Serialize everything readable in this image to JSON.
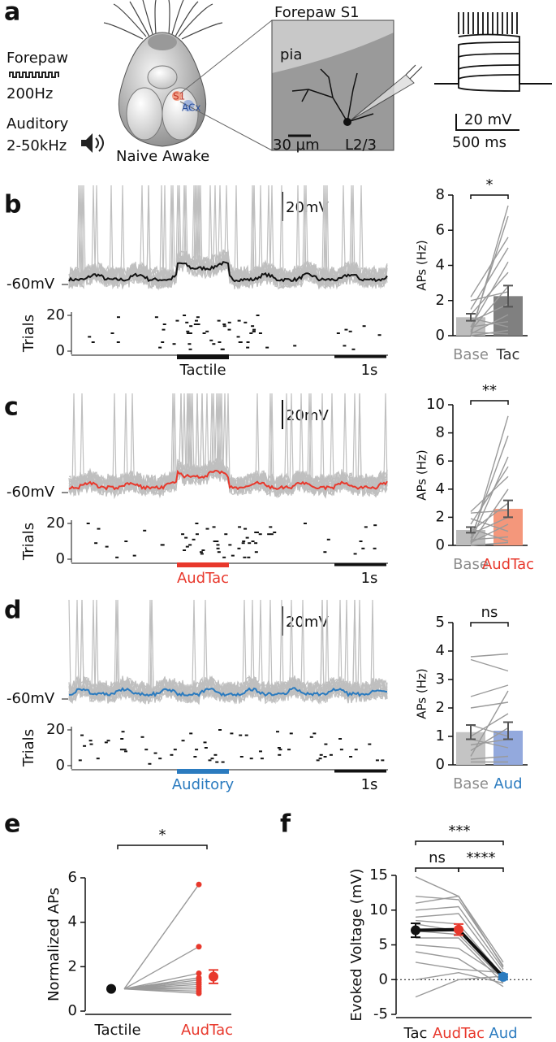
{
  "panel_labels": [
    "a",
    "b",
    "c",
    "d",
    "e",
    "f"
  ],
  "panel_a": {
    "forepaw": "Forepaw",
    "forepaw_freq": "200Hz",
    "auditory": "Auditory",
    "auditory_freq": "2-50kHz",
    "condition": "Naive Awake",
    "s1": "S1",
    "acx": "ACx",
    "image_title": "Forepaw S1",
    "pia": "pia",
    "image_scale": "30 µm",
    "layer": "L2/3",
    "voltage_scale": "20 mV",
    "time_scale": "500 ms"
  },
  "traces": [
    {
      "resting": "-60mV",
      "scale": "20mV",
      "trials_label": "Trials",
      "trials_ticks": [
        0,
        20
      ],
      "stimulus": "Tactile",
      "time_scale": "1s",
      "color": "#111111"
    },
    {
      "resting": "-60mV",
      "scale": "20mV",
      "trials_label": "Trials",
      "trials_ticks": [
        0,
        20
      ],
      "stimulus": "AudTac",
      "time_scale": "1s",
      "color": "#e8382c"
    },
    {
      "resting": "-60mV",
      "scale": "20mV",
      "trials_label": "Trials",
      "trials_ticks": [
        0,
        20
      ],
      "stimulus": "Auditory",
      "time_scale": "1s",
      "color": "#2b7bbf"
    }
  ],
  "chart_data": [
    {
      "type": "bar",
      "ylabel": "APs (Hz)",
      "categories": [
        "Base",
        "Tac"
      ],
      "category_colors": [
        "#8c8c8c",
        "#333333"
      ],
      "values": [
        1.05,
        2.25
      ],
      "errors": [
        0.2,
        0.6
      ],
      "colors": [
        "#bdbdbd",
        "#808080"
      ],
      "paired": [
        [
          0,
          7.4
        ],
        [
          0.2,
          6.8
        ],
        [
          2.2,
          5.6
        ],
        [
          1.5,
          5.0
        ],
        [
          0.5,
          4.2
        ],
        [
          1.2,
          3.6
        ],
        [
          0.3,
          2.8
        ],
        [
          2.0,
          2.5
        ],
        [
          0.8,
          1.8
        ],
        [
          0.1,
          1.2
        ],
        [
          0.5,
          0.8
        ],
        [
          0,
          0.3
        ],
        [
          1.0,
          0.5
        ],
        [
          0.2,
          0.1
        ]
      ],
      "ylim": [
        0,
        8
      ],
      "yticks": [
        0,
        2,
        4,
        6,
        8
      ],
      "significance": [
        "*"
      ]
    },
    {
      "type": "bar",
      "ylabel": "APs (Hz)",
      "categories": [
        "Base",
        "AudTac"
      ],
      "category_colors": [
        "#8c8c8c",
        "#e8382c"
      ],
      "values": [
        1.1,
        2.6
      ],
      "errors": [
        0.2,
        0.6
      ],
      "colors": [
        "#bdbdbd",
        "#f4977b"
      ],
      "paired": [
        [
          0.2,
          9.2
        ],
        [
          0.5,
          7.8
        ],
        [
          0.3,
          6.3
        ],
        [
          1.5,
          5.6
        ],
        [
          2.4,
          4.9
        ],
        [
          0.1,
          4.0
        ],
        [
          1.0,
          3.0
        ],
        [
          2.3,
          2.5
        ],
        [
          0.8,
          2.0
        ],
        [
          0.2,
          1.5
        ],
        [
          1.9,
          1.0
        ],
        [
          0.4,
          0.6
        ],
        [
          0,
          0.2
        ],
        [
          1.2,
          0.3
        ]
      ],
      "ylim": [
        0,
        10
      ],
      "yticks": [
        0,
        2,
        4,
        6,
        8,
        10
      ],
      "significance": [
        "**"
      ]
    },
    {
      "type": "bar",
      "ylabel": "APs (Hz)",
      "categories": [
        "Base",
        "Aud"
      ],
      "category_colors": [
        "#8c8c8c",
        "#2b7bbf"
      ],
      "values": [
        1.15,
        1.2
      ],
      "errors": [
        0.25,
        0.3
      ],
      "colors": [
        "#c4c4c4",
        "#93a9dd"
      ],
      "paired": [
        [
          3.8,
          3.9
        ],
        [
          3.7,
          3.3
        ],
        [
          2.4,
          2.8
        ],
        [
          0.3,
          2.6
        ],
        [
          2.0,
          2.2
        ],
        [
          1.0,
          1.8
        ],
        [
          1.4,
          1.0
        ],
        [
          0.5,
          1.3
        ],
        [
          0.9,
          0.6
        ],
        [
          0.2,
          0.3
        ],
        [
          0.1,
          0.1
        ],
        [
          0.7,
          0.9
        ]
      ],
      "ylim": [
        0,
        5
      ],
      "yticks": [
        0,
        1,
        2,
        3,
        4,
        5
      ],
      "significance": [
        "ns"
      ]
    },
    {
      "type": "dot",
      "ylabel": "Normalized APs",
      "categories": [
        "Tactile",
        "AudTac"
      ],
      "category_colors": [
        "#111111",
        "#e8382c"
      ],
      "values": [
        1,
        1.55
      ],
      "errors": [
        0,
        0.3
      ],
      "colors": [
        "#111111",
        "#e8382c"
      ],
      "paired": [
        [
          1,
          5.7
        ],
        [
          1,
          2.9
        ],
        [
          1,
          1.7
        ],
        [
          1,
          1.5
        ],
        [
          1,
          1.4
        ],
        [
          1,
          1.3
        ],
        [
          1,
          1.2
        ],
        [
          1,
          1.1
        ],
        [
          1,
          1.0
        ],
        [
          1,
          0.9
        ],
        [
          1,
          0.8
        ]
      ],
      "ylim": [
        0,
        6
      ],
      "yticks": [
        0,
        2,
        4,
        6
      ],
      "significance": [
        "*"
      ]
    },
    {
      "type": "dot",
      "ylabel": "Evoked Voltage (mV)",
      "categories": [
        "Tac",
        "AudTac",
        "Aud"
      ],
      "category_colors": [
        "#111111",
        "#e8382c",
        "#2b7bbf"
      ],
      "values": [
        7.1,
        7.2,
        0.4
      ],
      "errors": [
        1.0,
        0.8,
        0.4
      ],
      "colors": [
        "#111111",
        "#e8382c",
        "#2b7bbf"
      ],
      "paired": [
        [
          14.8,
          12.0,
          2.5
        ],
        [
          12,
          11.5,
          2
        ],
        [
          11,
          12,
          1.8
        ],
        [
          10,
          10.5,
          1.5
        ],
        [
          9,
          9.5,
          1
        ],
        [
          8.5,
          8,
          0.5
        ],
        [
          8,
          7,
          0.2
        ],
        [
          7,
          6.5,
          0
        ],
        [
          6,
          6,
          -0.5
        ],
        [
          5,
          4.5,
          0.3
        ],
        [
          4,
          3,
          -1
        ],
        [
          2.5,
          1.5,
          1
        ],
        [
          0,
          1,
          -0.5
        ],
        [
          -2.5,
          0,
          0.5
        ]
      ],
      "ylim": [
        -5,
        15
      ],
      "yticks": [
        -5,
        0,
        5,
        10,
        15
      ],
      "zero_line": true,
      "significance": [
        "ns",
        "****",
        "***"
      ]
    }
  ]
}
